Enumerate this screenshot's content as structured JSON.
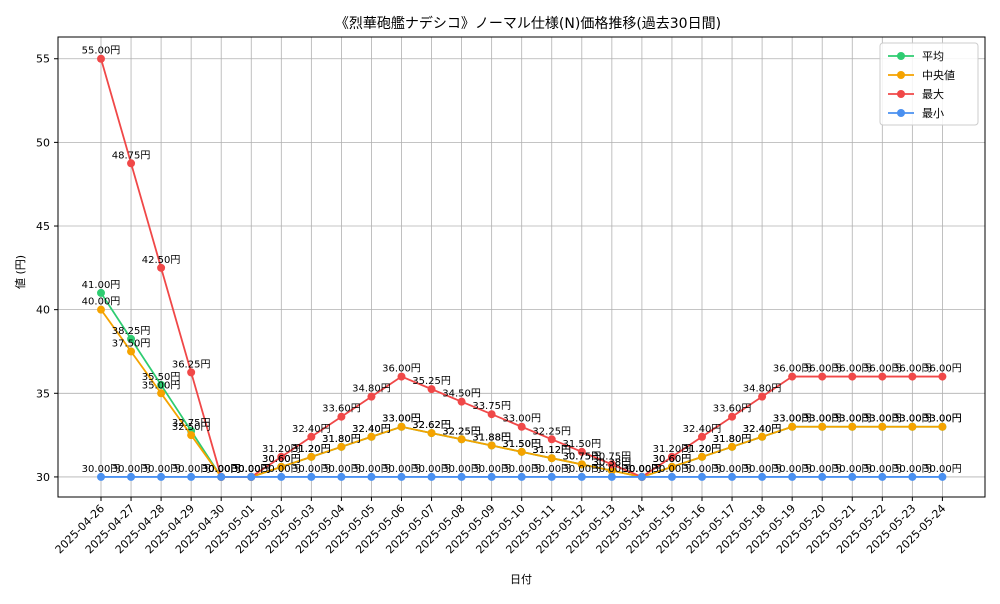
{
  "chart_data": {
    "type": "line",
    "title": "《烈華砲艦ナデシコ》ノーマル仕様(N)価格推移(過去30日間)",
    "xlabel": "日付",
    "ylabel": "値 (円)",
    "ylim": [
      28.8,
      56.3
    ],
    "yticks": [
      30,
      35,
      40,
      45,
      50,
      55
    ],
    "grid": true,
    "legend_position": "top-right",
    "label_suffix": "円",
    "x": [
      "2025-04-26",
      "2025-04-27",
      "2025-04-28",
      "2025-04-29",
      "2025-04-30",
      "2025-05-01",
      "2025-05-02",
      "2025-05-03",
      "2025-05-04",
      "2025-05-05",
      "2025-05-06",
      "2025-05-07",
      "2025-05-08",
      "2025-05-09",
      "2025-05-10",
      "2025-05-11",
      "2025-05-12",
      "2025-05-13",
      "2025-05-14",
      "2025-05-15",
      "2025-05-16",
      "2025-05-17",
      "2025-05-18",
      "2025-05-19",
      "2025-05-20",
      "2025-05-21",
      "2025-05-22",
      "2025-05-23",
      "2025-05-24"
    ],
    "series": [
      {
        "name": "平均",
        "color": "#2ecc71",
        "values": [
          41.0,
          38.25,
          35.5,
          32.75,
          30.0,
          30.0,
          30.6,
          31.2,
          31.8,
          32.4,
          33.0,
          32.62,
          32.25,
          31.88,
          31.5,
          31.12,
          30.75,
          30.38,
          30.0,
          30.6,
          31.2,
          31.8,
          32.4,
          33.0,
          33.0,
          33.0,
          33.0,
          33.0,
          33.0
        ]
      },
      {
        "name": "中央値",
        "color": "#f5a300",
        "values": [
          40.0,
          37.5,
          35.0,
          32.5,
          30.0,
          30.0,
          30.6,
          31.2,
          31.8,
          32.4,
          33.0,
          32.62,
          32.25,
          31.88,
          31.5,
          31.12,
          30.75,
          30.38,
          30.0,
          30.6,
          31.2,
          31.8,
          32.4,
          33.0,
          33.0,
          33.0,
          33.0,
          33.0,
          33.0
        ]
      },
      {
        "name": "最大",
        "color": "#f04848",
        "values": [
          55.0,
          48.75,
          42.5,
          36.25,
          30.0,
          30.0,
          31.2,
          32.4,
          33.6,
          34.8,
          36.0,
          35.25,
          34.5,
          33.75,
          33.0,
          32.25,
          31.5,
          30.75,
          30.0,
          31.2,
          32.4,
          33.6,
          34.8,
          36.0,
          36.0,
          36.0,
          36.0,
          36.0,
          36.0
        ]
      },
      {
        "name": "最小",
        "color": "#4a90f0",
        "values": [
          30.0,
          30.0,
          30.0,
          30.0,
          30.0,
          30.0,
          30.0,
          30.0,
          30.0,
          30.0,
          30.0,
          30.0,
          30.0,
          30.0,
          30.0,
          30.0,
          30.0,
          30.0,
          30.0,
          30.0,
          30.0,
          30.0,
          30.0,
          30.0,
          30.0,
          30.0,
          30.0,
          30.0,
          30.0
        ]
      }
    ]
  }
}
